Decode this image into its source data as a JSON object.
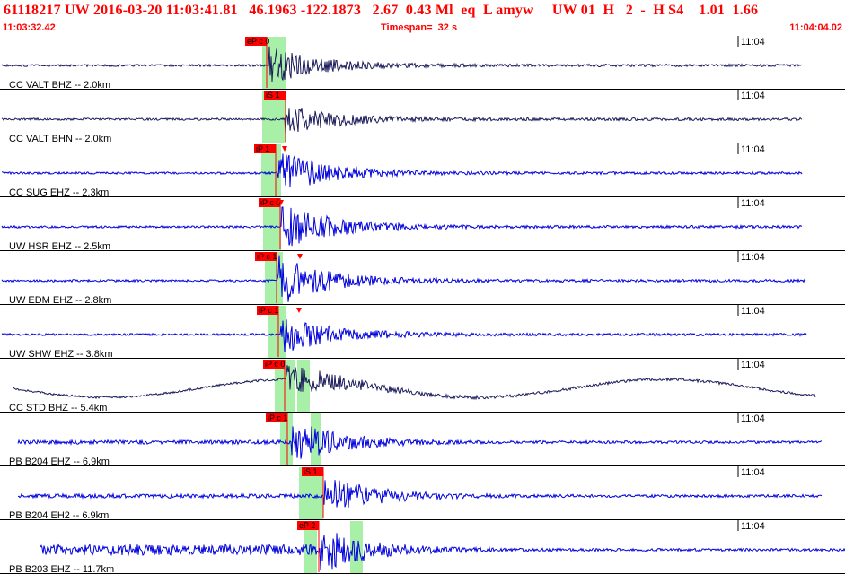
{
  "header": {
    "event_line": "61118217 UW 2016-03-20 11:03:41.81   46.1963 -122.1873   2.67  0.43 Ml  eq  L amyw     UW 01  H   2  -  H S4    1.01  1.66",
    "start_time": "11:03:32.42",
    "timespan": "Timespan=  32 s",
    "end_time": "11:04:04.02"
  },
  "colors": {
    "header_text": "#ff0000",
    "trace_blue": "#0000dd",
    "trace_dark": "#1a1a5a",
    "pick": "#ff0000",
    "window": "#a8f0a8"
  },
  "time_tick_label": "11:04",
  "traces": [
    {
      "label": "CC VALT BHZ -- 2.0km",
      "pick": "eP c 0",
      "color": "dark",
      "amp": 20
    },
    {
      "label": "CC VALT BHN -- 2.0km",
      "pick": "iS 1",
      "color": "dark",
      "amp": 18
    },
    {
      "label": "CC SUG EHZ -- 2.3km",
      "pick": "iP 1",
      "color": "blue",
      "amp": 25
    },
    {
      "label": "UW HSR EHZ -- 2.5km",
      "pick": "iP c 0",
      "color": "blue",
      "amp": 26
    },
    {
      "label": "UW EDM EHZ -- 2.8km",
      "pick": "iP c 1",
      "color": "blue",
      "amp": 28
    },
    {
      "label": "UW SHW EHZ -- 3.8km",
      "pick": "iP c 1",
      "color": "blue",
      "amp": 22
    },
    {
      "label": "CC STD BHZ -- 5.4km",
      "pick": "iP c 0",
      "color": "dark",
      "amp": 20
    },
    {
      "label": "PB B204 EHZ -- 6.9km",
      "pick": "iP c 1",
      "color": "blue",
      "amp": 24
    },
    {
      "label": "PB B204 EH2 -- 6.9km",
      "pick": "iS 1",
      "color": "blue",
      "amp": 24
    },
    {
      "label": "PB B203 EHZ -- 11.7km",
      "pick": "eP 2",
      "color": "blue",
      "amp": 26
    }
  ]
}
